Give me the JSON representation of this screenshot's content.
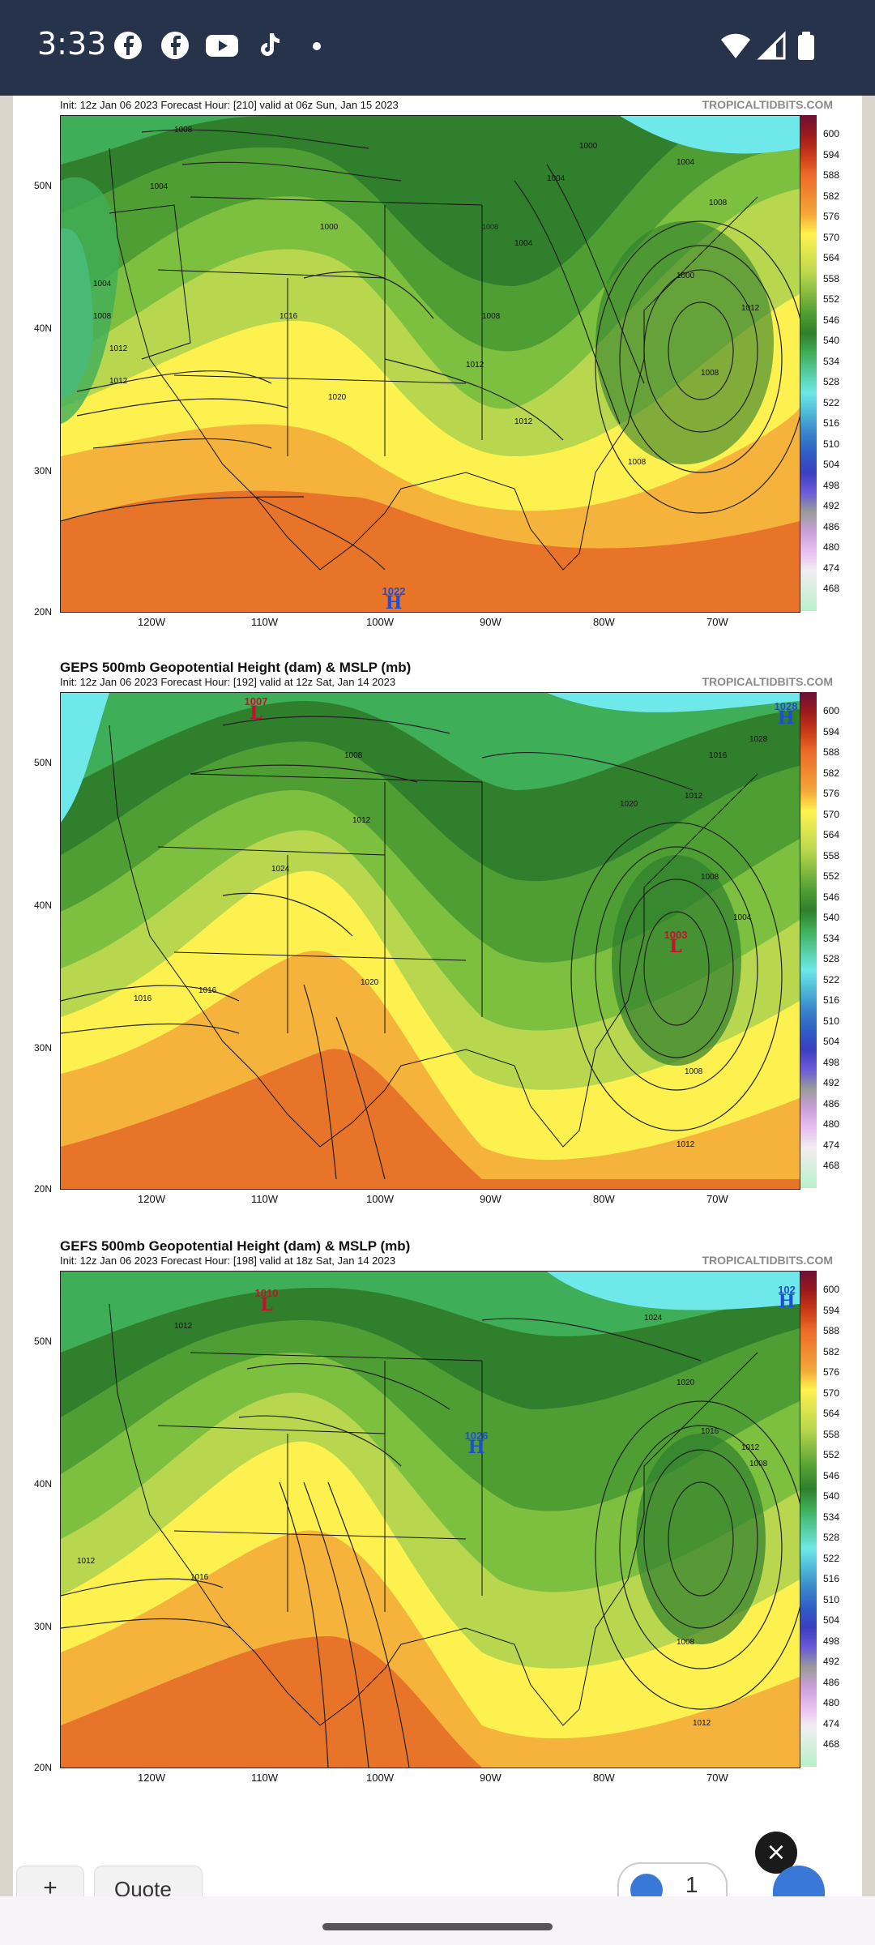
{
  "status_bar": {
    "time": "3:33",
    "icons": [
      "facebook-icon",
      "facebook-icon",
      "youtube-icon",
      "tiktok-icon",
      "dot-icon",
      "wifi-icon",
      "signal-icon",
      "battery-icon"
    ],
    "background": "#27334a"
  },
  "maps": [
    {
      "title": "",
      "subtitle": "Init: 12z Jan 06 2023   Forecast Hour: [210]   valid at 06z Sun, Jan 15 2023",
      "brand": "TROPICALTIDBITS.COM",
      "pressure_labels": [
        "1008",
        "1004",
        "1000",
        "1004",
        "1008",
        "1012",
        "1012",
        "1016",
        "1020",
        "1012",
        "1008",
        "1004",
        "1000",
        "1008",
        "1012",
        "1008",
        "1004",
        "1000",
        "1004",
        "1008",
        "1012"
      ],
      "highs": [
        {
          "value": "1022",
          "symbol": "H"
        }
      ],
      "lows": []
    },
    {
      "title": "GEPS 500mb Geopotential Height (dam) & MSLP (mb)",
      "subtitle": "Init: 12z Jan 06 2023   Forecast Hour: [192]   valid at 12z Sat, Jan 14 2023",
      "brand": "TROPICALTIDBITS.COM",
      "pressure_labels": [
        "1008",
        "1012",
        "1020",
        "1024",
        "1016",
        "1016",
        "1020",
        "1012",
        "1008",
        "1004",
        "1008",
        "1012",
        "1028",
        "1016"
      ],
      "highs": [
        {
          "value": "1028",
          "symbol": "H"
        }
      ],
      "lows": [
        {
          "value": "1007",
          "symbol": "L"
        },
        {
          "value": "1003",
          "symbol": "L"
        }
      ]
    },
    {
      "title": "GEFS 500mb Geopotential Height (dam) & MSLP (mb)",
      "subtitle": "Init: 12z Jan 06 2023   Forecast Hour: [198]   valid at 18z Sat, Jan 14 2023",
      "brand": "TROPICALTIDBITS.COM",
      "pressure_labels": [
        "1012",
        "1012",
        "1016",
        "1024",
        "1020",
        "1016",
        "1012",
        "1008",
        "1008",
        "1012"
      ],
      "highs": [
        {
          "value": "1026",
          "symbol": "H"
        },
        {
          "value": "102",
          "symbol": "H"
        }
      ],
      "lows": [
        {
          "value": "1010",
          "symbol": "L"
        }
      ]
    }
  ],
  "legend": {
    "labels": [
      "600",
      "594",
      "588",
      "582",
      "576",
      "570",
      "564",
      "558",
      "552",
      "546",
      "540",
      "534",
      "528",
      "522",
      "516",
      "510",
      "504",
      "498",
      "492",
      "486",
      "480",
      "474",
      "468"
    ],
    "colors": [
      "#6b1038",
      "#9b1a1a",
      "#c93a18",
      "#ec6a2a",
      "#f4a73a",
      "#f7d040",
      "#fff250",
      "#d7e85a",
      "#a7d450",
      "#7dbf3f",
      "#4f9e34",
      "#2f7f2d",
      "#3fae58",
      "#5cc67a",
      "#6ee8e8",
      "#4fb8d8",
      "#3a86cc",
      "#2f5fc4",
      "#3a3fc0",
      "#6a5ad8",
      "#9a9a9a",
      "#c9a0d9",
      "#e8c0f0",
      "#f4d8f6",
      "#f2eef2",
      "#dcf5dc",
      "#b8f0c8"
    ]
  },
  "axes": {
    "lat_labels": [
      "50N",
      "40N",
      "30N",
      "20N"
    ],
    "lon_labels": [
      "120W",
      "110W",
      "100W",
      "90W",
      "80W",
      "70W"
    ]
  },
  "bottom": {
    "close_glyph": "×",
    "add_glyph": "+",
    "quote_label": "Quote",
    "like_count": "1"
  }
}
